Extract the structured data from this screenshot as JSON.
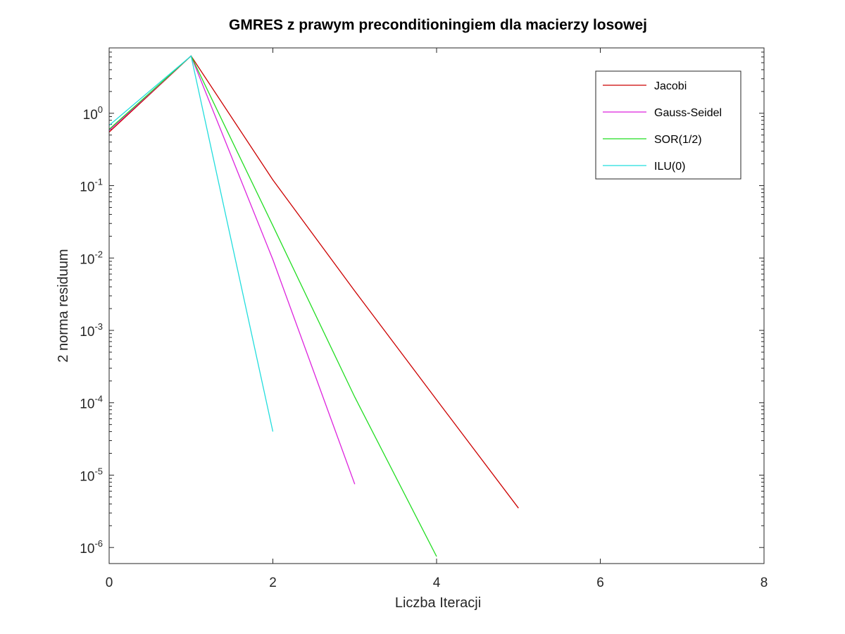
{
  "chart_data": {
    "type": "line",
    "title": "GMRES z prawym preconditioningiem dla macierzy losowej",
    "xlabel": "Liczba Iteracji",
    "ylabel": "2 norma residuum",
    "xlim": [
      0,
      8
    ],
    "ylim": [
      6e-07,
      8
    ],
    "yscale": "log",
    "xticks": [
      0,
      2,
      4,
      6,
      8
    ],
    "yticks": [
      {
        "base": "10",
        "exp": "0",
        "value": 1
      },
      {
        "base": "10",
        "exp": "-1",
        "value": 0.1
      },
      {
        "base": "10",
        "exp": "-2",
        "value": 0.01
      },
      {
        "base": "10",
        "exp": "-3",
        "value": 0.001
      },
      {
        "base": "10",
        "exp": "-4",
        "value": 0.0001
      },
      {
        "base": "10",
        "exp": "-5",
        "value": 1e-05
      },
      {
        "base": "10",
        "exp": "-6",
        "value": 1e-06
      }
    ],
    "grid": false,
    "legend_position": "top-right",
    "series": [
      {
        "name": "Jacobi",
        "color": "#cc0000",
        "x": [
          0,
          1,
          2,
          3,
          4,
          5
        ],
        "y": [
          0.55,
          6.2,
          0.12,
          0.0035,
          0.00011,
          3.5e-06
        ]
      },
      {
        "name": "Gauss-Seidel",
        "color": "#dd22dd",
        "x": [
          0,
          1,
          2,
          3
        ],
        "y": [
          0.58,
          6.2,
          0.0095,
          7.5e-06
        ]
      },
      {
        "name": "SOR(1/2)",
        "color": "#22dd22",
        "x": [
          0,
          1,
          2,
          3,
          4
        ],
        "y": [
          0.6,
          6.2,
          0.028,
          0.00012,
          7.5e-07
        ]
      },
      {
        "name": "ILU(0)",
        "color": "#22dddd",
        "x": [
          0,
          1,
          2
        ],
        "y": [
          0.68,
          6.2,
          4e-05
        ]
      }
    ]
  }
}
